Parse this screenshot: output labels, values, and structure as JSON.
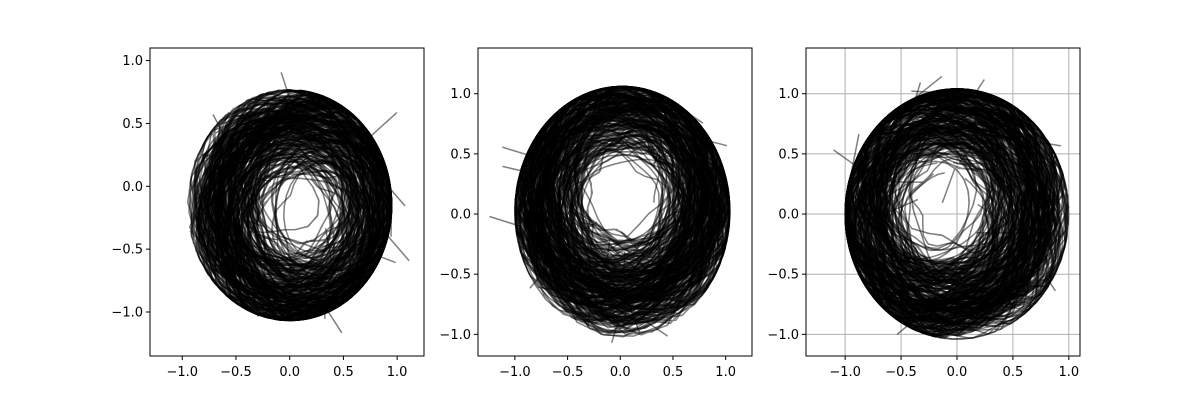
{
  "chart_data": [
    {
      "type": "line",
      "title": "",
      "xlabel": "",
      "ylabel": "",
      "xlim": [
        -1.3,
        1.25
      ],
      "ylim": [
        -1.35,
        1.1
      ],
      "xticks": [
        -1.0,
        -0.5,
        0.0,
        0.5,
        1.0
      ],
      "yticks": [
        -1.0,
        -0.5,
        0.0,
        0.5,
        1.0
      ],
      "xtick_labels": [
        "−1.0",
        "−0.5",
        "0.0",
        "0.5",
        "1.0"
      ],
      "ytick_labels": [
        "−1.0",
        "−0.5",
        "0.0",
        "0.5",
        "1.0"
      ],
      "grid": false,
      "line_color": "#000000",
      "line_alpha": 0.5,
      "description_series": {
        "kind": "dense overlapping closed trajectories",
        "envelope_center": [
          0.0,
          -0.15
        ],
        "envelope_radius": [
          0.93,
          0.9
        ],
        "density_bias_direction_deg": -20,
        "x_extent": [
          -1.15,
          1.1
        ],
        "y_extent": [
          -1.25,
          0.95
        ]
      }
    },
    {
      "type": "line",
      "title": "",
      "xlabel": "",
      "ylabel": "",
      "xlim": [
        -1.35,
        1.25
      ],
      "ylim": [
        -1.18,
        1.38
      ],
      "xticks": [
        -1.0,
        -0.5,
        0.0,
        0.5,
        1.0
      ],
      "yticks": [
        -1.0,
        -0.5,
        0.0,
        0.5,
        1.0
      ],
      "xtick_labels": [
        "−1.0",
        "−0.5",
        "0.0",
        "0.5",
        "1.0"
      ],
      "ytick_labels": [
        "−1.0",
        "−0.5",
        "0.0",
        "0.5",
        "1.0"
      ],
      "grid": false,
      "line_color": "#000000",
      "line_alpha": 0.5,
      "description_series": {
        "kind": "dense overlapping closed trajectories",
        "envelope_center": [
          0.02,
          0.02
        ],
        "envelope_radius": [
          1.0,
          1.02
        ],
        "density_bias_direction_deg": 90,
        "x_extent": [
          -1.0,
          1.05
        ],
        "y_extent": [
          -1.05,
          1.25
        ]
      }
    },
    {
      "type": "line",
      "title": "",
      "xlabel": "",
      "ylabel": "",
      "xlim": [
        -1.35,
        1.1
      ],
      "ylim": [
        -1.18,
        1.38
      ],
      "xticks": [
        -1.0,
        -0.5,
        0.0,
        0.5,
        1.0
      ],
      "yticks": [
        -1.0,
        -0.5,
        0.0,
        0.5,
        1.0
      ],
      "xtick_labels": [
        "−1.0",
        "−0.5",
        "0.0",
        "0.5",
        "1.0"
      ],
      "ytick_labels": [
        "−1.0",
        "−0.5",
        "0.0",
        "0.5",
        "1.0"
      ],
      "grid": true,
      "line_color": "#000000",
      "line_alpha": 0.5,
      "description_series": {
        "kind": "dense overlapping closed trajectories",
        "envelope_center": [
          0.0,
          0.0
        ],
        "envelope_radius": [
          0.98,
          1.02
        ],
        "density_bias_direction_deg": 150,
        "x_extent": [
          -1.25,
          1.0
        ],
        "y_extent": [
          -1.05,
          1.25
        ]
      }
    }
  ]
}
